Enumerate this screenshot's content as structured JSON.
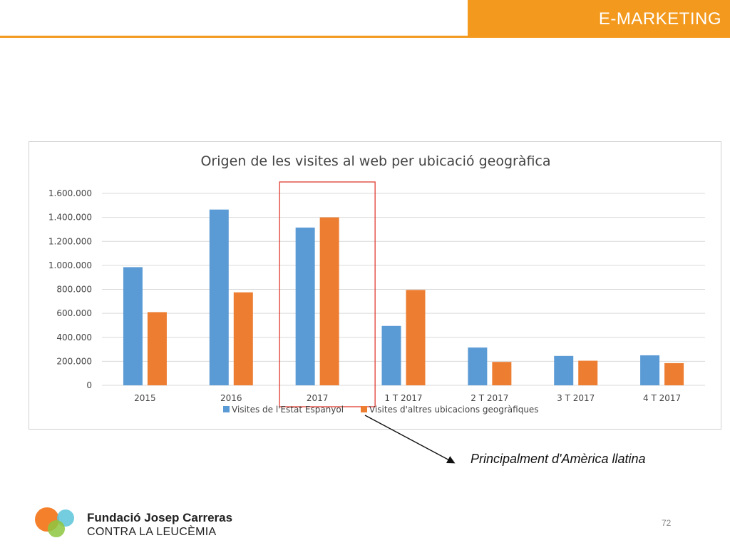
{
  "header": {
    "title": "E-MARKETING",
    "accent_color": "#f39a1e"
  },
  "chart_data": {
    "type": "bar",
    "title": "Origen de les visites al web per ubicació geogràfica",
    "categories": [
      "2015",
      "2016",
      "2017",
      "1 T 2017",
      "2 T 2017",
      "3 T 2017",
      "4 T 2017"
    ],
    "series": [
      {
        "name": "Visites de l'Estat Espanyol",
        "color": "#5b9bd5",
        "values": [
          985000,
          1465000,
          1315000,
          495000,
          315000,
          245000,
          250000
        ]
      },
      {
        "name": "Visites d'altres ubicacions geogràfiques",
        "color": "#ed7d31",
        "values": [
          610000,
          775000,
          1400000,
          795000,
          195000,
          205000,
          185000
        ]
      }
    ],
    "ylim": [
      0,
      1600000
    ],
    "yticks": [
      "0",
      "200.000",
      "400.000",
      "600.000",
      "800.000",
      "1.000.000",
      "1.200.000",
      "1.400.000",
      "1.600.000"
    ],
    "grid": true,
    "legend_position": "bottom",
    "highlighted_category": "2017",
    "highlight_color": "#e03c31"
  },
  "annotation": {
    "text": "Principalment d'Amèrica llatina"
  },
  "footer": {
    "org_name": "Fundació Josep Carreras",
    "org_subtitle": "CONTRA LA LEUCÈMIA",
    "page_number": "72",
    "logo_colors": [
      "#f47920",
      "#5bc4d9",
      "#8dc63f"
    ]
  }
}
